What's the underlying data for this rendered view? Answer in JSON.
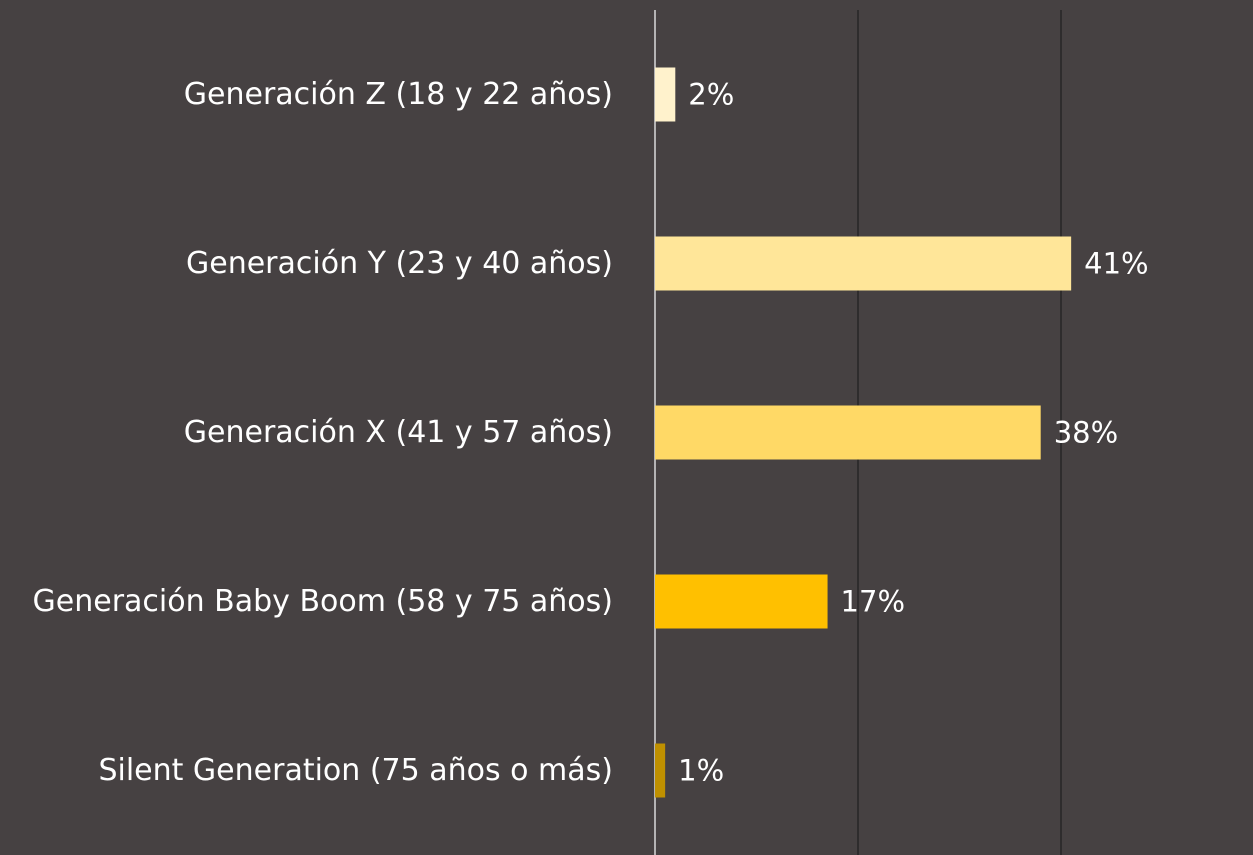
{
  "chart_data": {
    "type": "barh",
    "categories": [
      "Generación Z (18 y 22 años)",
      "Generación Y (23 y 40 años)",
      "Generación X (41 y 57 años)",
      "Generación Baby Boom (58 y 75 años)",
      "Silent Generation (75 años o más)"
    ],
    "values": [
      2,
      41,
      38,
      17,
      1
    ],
    "value_labels": [
      "2%",
      "41%",
      "38%",
      "17%",
      "1%"
    ],
    "colors": [
      "#fff2cc",
      "#ffe699",
      "#ffd966",
      "#ffc000",
      "#bf9000"
    ],
    "xlim": [
      0,
      58
    ],
    "xticks": [
      0,
      20,
      40
    ],
    "grid": true
  }
}
